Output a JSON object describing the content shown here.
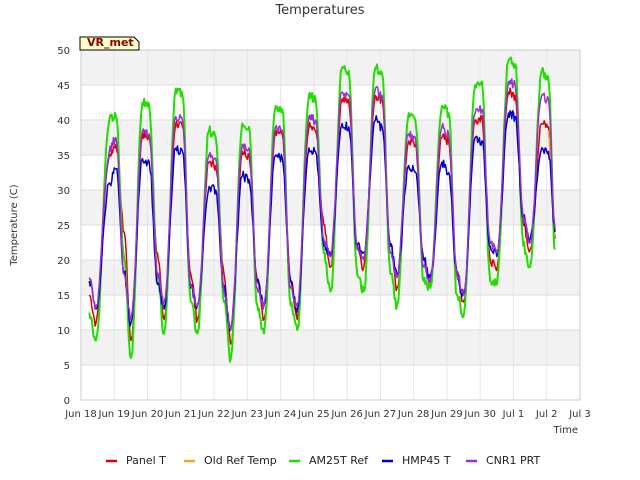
{
  "chart_data": {
    "type": "line",
    "title": "Temperatures",
    "xlabel": "Time",
    "ylabel": "Temperature (C)",
    "site_label": "VR_met",
    "xlim": [
      0,
      15
    ],
    "ylim": [
      0,
      50
    ],
    "y_ticks": [
      0,
      5,
      10,
      15,
      20,
      25,
      30,
      35,
      40,
      45,
      50
    ],
    "x_ticks": [
      {
        "x": 0,
        "label": "Jun 18"
      },
      {
        "x": 1,
        "label": "Jun 19"
      },
      {
        "x": 2,
        "label": "Jun 20"
      },
      {
        "x": 3,
        "label": "Jun 21"
      },
      {
        "x": 4,
        "label": "Jun 22"
      },
      {
        "x": 5,
        "label": "Jun 23"
      },
      {
        "x": 6,
        "label": "Jun 24"
      },
      {
        "x": 7,
        "label": "Jun 25"
      },
      {
        "x": 8,
        "label": "Jun 26"
      },
      {
        "x": 9,
        "label": "Jun 27"
      },
      {
        "x": 10,
        "label": "Jun 28"
      },
      {
        "x": 11,
        "label": "Jun 29"
      },
      {
        "x": 12,
        "label": "Jun 30"
      },
      {
        "x": 13,
        "label": "Jul 1"
      },
      {
        "x": 14,
        "label": "Jul 2"
      },
      {
        "x": 15,
        "label": "Jul 3"
      }
    ],
    "grid": true,
    "band_shading": true,
    "legend_position": "bottom",
    "daily_extremes_note_x_units": "days since Jun 18 00:00",
    "series": [
      {
        "name": "Panel T",
        "color": "#dd0000",
        "points": [
          [
            0.25,
            15.0
          ],
          [
            0.45,
            11.0
          ],
          [
            0.85,
            35.0
          ],
          [
            1.05,
            36.5
          ],
          [
            1.3,
            24.0
          ],
          [
            1.5,
            8.5
          ],
          [
            1.85,
            38.0
          ],
          [
            2.05,
            37.5
          ],
          [
            2.3,
            21.0
          ],
          [
            2.5,
            11.5
          ],
          [
            2.85,
            39.5
          ],
          [
            3.05,
            39.0
          ],
          [
            3.3,
            18.0
          ],
          [
            3.5,
            11.5
          ],
          [
            3.85,
            34.0
          ],
          [
            4.05,
            33.5
          ],
          [
            4.3,
            18.0
          ],
          [
            4.5,
            8.0
          ],
          [
            4.85,
            35.5
          ],
          [
            5.05,
            35.0
          ],
          [
            5.3,
            17.0
          ],
          [
            5.5,
            11.5
          ],
          [
            5.85,
            38.5
          ],
          [
            6.05,
            38.0
          ],
          [
            6.3,
            17.0
          ],
          [
            6.5,
            11.5
          ],
          [
            6.85,
            39.0
          ],
          [
            7.05,
            38.5
          ],
          [
            7.3,
            25.0
          ],
          [
            7.5,
            19.0
          ],
          [
            7.85,
            43.0
          ],
          [
            8.05,
            42.5
          ],
          [
            8.3,
            22.0
          ],
          [
            8.5,
            19.0
          ],
          [
            8.85,
            43.5
          ],
          [
            9.05,
            43.0
          ],
          [
            9.3,
            22.0
          ],
          [
            9.5,
            16.0
          ],
          [
            9.85,
            37.0
          ],
          [
            10.05,
            36.5
          ],
          [
            10.3,
            20.0
          ],
          [
            10.5,
            16.5
          ],
          [
            10.85,
            37.5
          ],
          [
            11.05,
            37.0
          ],
          [
            11.3,
            18.0
          ],
          [
            11.5,
            14.0
          ],
          [
            11.85,
            40.0
          ],
          [
            12.05,
            40.5
          ],
          [
            12.3,
            20.0
          ],
          [
            12.5,
            18.5
          ],
          [
            12.85,
            44.0
          ],
          [
            13.05,
            43.5
          ],
          [
            13.3,
            25.0
          ],
          [
            13.5,
            21.5
          ],
          [
            13.85,
            39.5
          ],
          [
            14.05,
            39.0
          ],
          [
            14.25,
            23.0
          ]
        ]
      },
      {
        "name": "Old Ref Temp",
        "color": "#f5a623",
        "points": [
          [
            14.05,
            38.5
          ],
          [
            14.15,
            31.0
          ],
          [
            14.25,
            23.5
          ]
        ]
      },
      {
        "name": "AM25T Ref",
        "color": "#22dd00",
        "points": [
          [
            0.25,
            12.5
          ],
          [
            0.45,
            8.5
          ],
          [
            0.85,
            40.0
          ],
          [
            1.05,
            40.5
          ],
          [
            1.3,
            20.0
          ],
          [
            1.5,
            6.0
          ],
          [
            1.85,
            42.5
          ],
          [
            2.05,
            42.0
          ],
          [
            2.3,
            18.0
          ],
          [
            2.5,
            9.5
          ],
          [
            2.85,
            44.5
          ],
          [
            3.05,
            43.5
          ],
          [
            3.3,
            14.0
          ],
          [
            3.5,
            9.5
          ],
          [
            3.85,
            38.5
          ],
          [
            4.05,
            37.5
          ],
          [
            4.3,
            14.0
          ],
          [
            4.5,
            5.8
          ],
          [
            4.85,
            39.5
          ],
          [
            5.05,
            39.0
          ],
          [
            5.3,
            13.5
          ],
          [
            5.5,
            9.5
          ],
          [
            5.85,
            42.0
          ],
          [
            6.05,
            41.5
          ],
          [
            6.3,
            13.5
          ],
          [
            6.5,
            10.0
          ],
          [
            6.85,
            43.5
          ],
          [
            7.05,
            43.0
          ],
          [
            7.3,
            21.0
          ],
          [
            7.5,
            15.5
          ],
          [
            7.85,
            47.5
          ],
          [
            8.05,
            47.0
          ],
          [
            8.3,
            18.0
          ],
          [
            8.5,
            15.5
          ],
          [
            8.85,
            47.5
          ],
          [
            9.05,
            46.5
          ],
          [
            9.3,
            18.0
          ],
          [
            9.5,
            13.5
          ],
          [
            9.85,
            41.0
          ],
          [
            10.05,
            40.0
          ],
          [
            10.3,
            17.0
          ],
          [
            10.5,
            16.0
          ],
          [
            10.85,
            42.0
          ],
          [
            11.05,
            41.0
          ],
          [
            11.3,
            15.0
          ],
          [
            11.5,
            12.0
          ],
          [
            11.85,
            45.0
          ],
          [
            12.05,
            45.5
          ],
          [
            12.3,
            17.0
          ],
          [
            12.5,
            16.5
          ],
          [
            12.85,
            48.5
          ],
          [
            13.05,
            48.0
          ],
          [
            13.3,
            22.0
          ],
          [
            13.5,
            19.0
          ],
          [
            13.85,
            47.0
          ],
          [
            14.05,
            46.0
          ],
          [
            14.25,
            21.5
          ]
        ]
      },
      {
        "name": "HMP45 T",
        "color": "#0000cc",
        "points": [
          [
            0.25,
            17.0
          ],
          [
            0.45,
            13.0
          ],
          [
            0.85,
            31.0
          ],
          [
            1.05,
            33.0
          ],
          [
            1.3,
            18.0
          ],
          [
            1.5,
            11.0
          ],
          [
            1.85,
            34.5
          ],
          [
            2.05,
            34.0
          ],
          [
            2.3,
            16.5
          ],
          [
            2.5,
            13.0
          ],
          [
            2.85,
            36.0
          ],
          [
            3.05,
            35.5
          ],
          [
            3.3,
            16.0
          ],
          [
            3.5,
            13.5
          ],
          [
            3.85,
            30.5
          ],
          [
            4.05,
            30.0
          ],
          [
            4.3,
            16.0
          ],
          [
            4.5,
            10.0
          ],
          [
            4.85,
            32.0
          ],
          [
            5.05,
            31.5
          ],
          [
            5.3,
            17.0
          ],
          [
            5.5,
            13.5
          ],
          [
            5.85,
            35.0
          ],
          [
            6.05,
            34.5
          ],
          [
            6.3,
            17.0
          ],
          [
            6.5,
            13.0
          ],
          [
            6.85,
            36.0
          ],
          [
            7.05,
            35.5
          ],
          [
            7.3,
            22.0
          ],
          [
            7.5,
            20.5
          ],
          [
            7.85,
            39.5
          ],
          [
            8.05,
            39.0
          ],
          [
            8.3,
            22.0
          ],
          [
            8.5,
            21.0
          ],
          [
            8.85,
            40.0
          ],
          [
            9.05,
            39.0
          ],
          [
            9.3,
            22.0
          ],
          [
            9.5,
            18.0
          ],
          [
            9.85,
            33.5
          ],
          [
            10.05,
            32.5
          ],
          [
            10.3,
            20.0
          ],
          [
            10.5,
            17.5
          ],
          [
            10.85,
            34.0
          ],
          [
            11.05,
            32.5
          ],
          [
            11.3,
            18.0
          ],
          [
            11.5,
            15.0
          ],
          [
            11.85,
            37.5
          ],
          [
            12.05,
            37.0
          ],
          [
            12.3,
            22.0
          ],
          [
            12.5,
            20.5
          ],
          [
            12.85,
            41.0
          ],
          [
            13.05,
            40.5
          ],
          [
            13.3,
            26.0
          ],
          [
            13.5,
            23.0
          ],
          [
            13.85,
            36.0
          ],
          [
            14.05,
            35.5
          ],
          [
            14.25,
            24.0
          ]
        ]
      },
      {
        "name": "CNR1 PRT",
        "color": "#9b30d0",
        "points": [
          [
            0.25,
            17.5
          ],
          [
            0.45,
            13.5
          ],
          [
            0.85,
            35.5
          ],
          [
            1.05,
            37.5
          ],
          [
            1.3,
            18.0
          ],
          [
            1.5,
            11.5
          ],
          [
            1.85,
            38.5
          ],
          [
            2.05,
            38.0
          ],
          [
            2.3,
            18.0
          ],
          [
            2.5,
            14.0
          ],
          [
            2.85,
            40.5
          ],
          [
            3.05,
            40.0
          ],
          [
            3.3,
            16.5
          ],
          [
            3.5,
            13.5
          ],
          [
            3.85,
            35.0
          ],
          [
            4.05,
            34.5
          ],
          [
            4.3,
            15.5
          ],
          [
            4.5,
            10.0
          ],
          [
            4.85,
            36.5
          ],
          [
            5.05,
            36.0
          ],
          [
            5.3,
            16.0
          ],
          [
            5.5,
            13.5
          ],
          [
            5.85,
            39.0
          ],
          [
            6.05,
            38.5
          ],
          [
            6.3,
            16.0
          ],
          [
            6.5,
            13.5
          ],
          [
            6.85,
            40.5
          ],
          [
            7.05,
            40.0
          ],
          [
            7.3,
            23.0
          ],
          [
            7.5,
            20.5
          ],
          [
            7.85,
            44.0
          ],
          [
            8.05,
            43.5
          ],
          [
            8.3,
            21.5
          ],
          [
            8.5,
            20.0
          ],
          [
            8.85,
            44.5
          ],
          [
            9.05,
            43.5
          ],
          [
            9.3,
            21.0
          ],
          [
            9.5,
            17.5
          ],
          [
            9.85,
            38.0
          ],
          [
            10.05,
            37.5
          ],
          [
            10.3,
            19.0
          ],
          [
            10.5,
            17.0
          ],
          [
            10.85,
            39.0
          ],
          [
            11.05,
            38.0
          ],
          [
            11.3,
            18.0
          ],
          [
            11.5,
            15.0
          ],
          [
            11.85,
            41.0
          ],
          [
            12.05,
            41.5
          ],
          [
            12.3,
            22.5
          ],
          [
            12.5,
            21.0
          ],
          [
            12.85,
            45.5
          ],
          [
            13.05,
            45.0
          ],
          [
            13.3,
            26.0
          ],
          [
            13.5,
            22.5
          ],
          [
            13.85,
            43.5
          ],
          [
            14.05,
            43.0
          ],
          [
            14.25,
            24.5
          ]
        ]
      }
    ]
  }
}
